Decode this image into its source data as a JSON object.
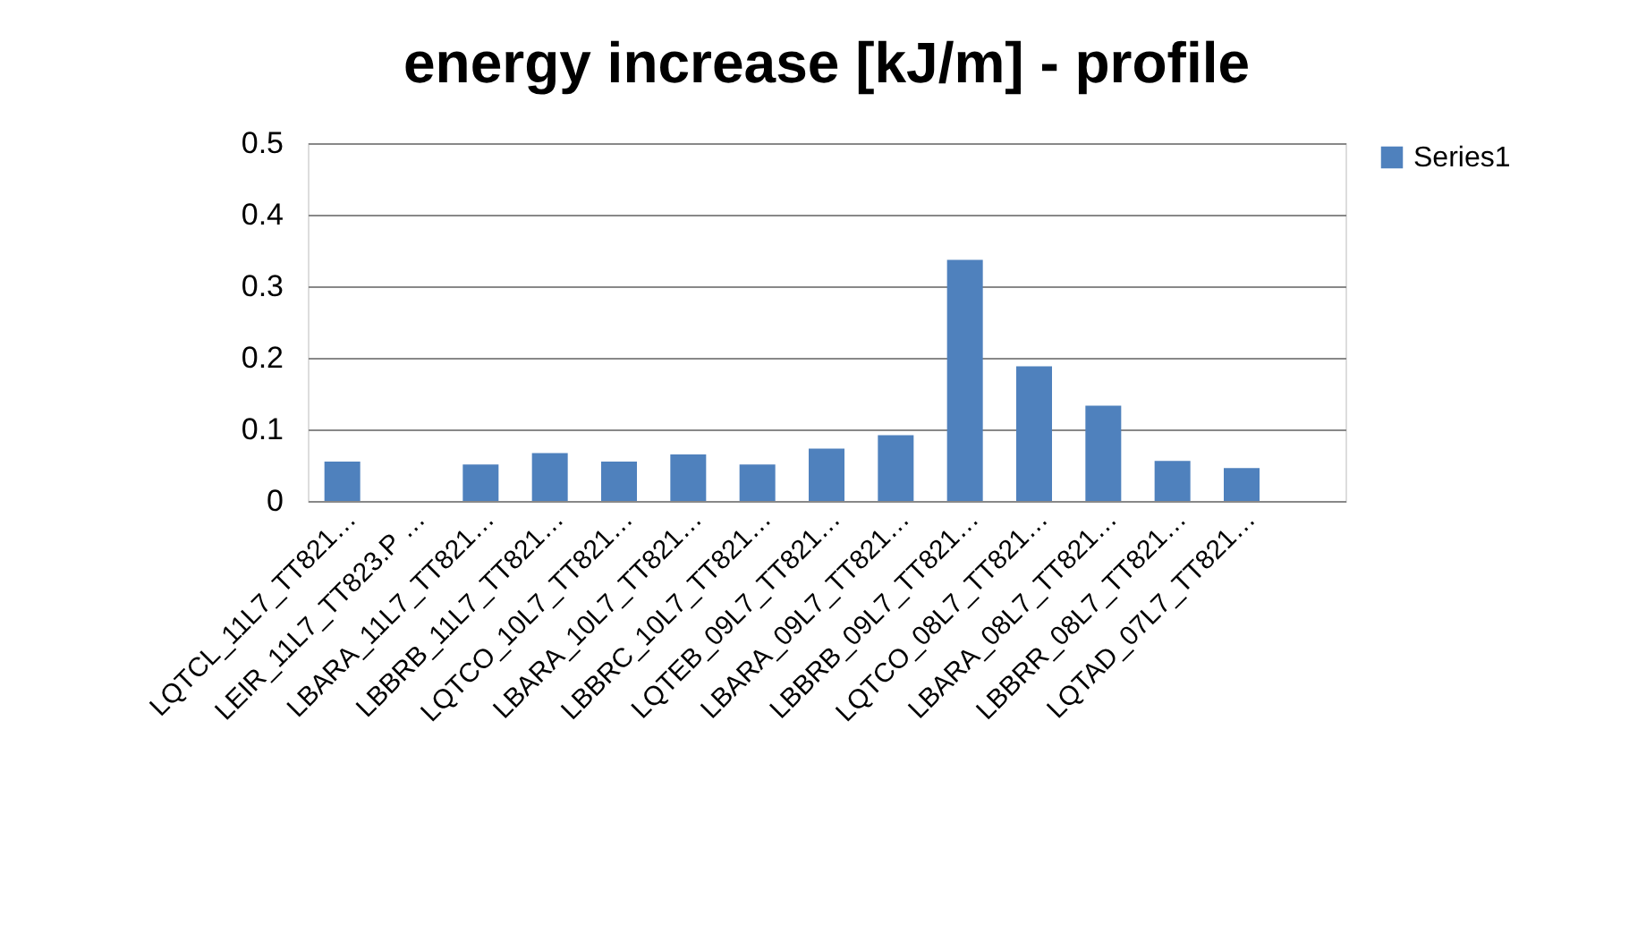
{
  "chart_data": {
    "type": "bar",
    "title": "energy increase [kJ/m] - profile",
    "categories": [
      "LQTCL_11L7_TT821…",
      "LEIR_11L7_TT823.P …",
      "LBARA_11L7_TT821…",
      "LBBRB_11L7_TT821…",
      "LQTCO_10L7_TT821…",
      "LBARA_10L7_TT821…",
      "LBBRC_10L7_TT821…",
      "LQTEB_09L7_TT821…",
      "LBARA_09L7_TT821…",
      "LBBRB_09L7_TT821…",
      "LQTCO_08L7_TT821…",
      "LBARA_08L7_TT821…",
      "LBBRR_08L7_TT821…",
      "LQTAD_07L7_TT821…",
      null
    ],
    "series": [
      {
        "name": "Series1",
        "color": "#4f81bd",
        "values": [
          0.055,
          null,
          0.051,
          0.067,
          0.055,
          0.065,
          0.051,
          0.073,
          0.092,
          0.337,
          0.188,
          0.133,
          0.056,
          0.046,
          null
        ]
      }
    ],
    "ylim": [
      0,
      0.5
    ],
    "yticks": [
      0,
      0.1,
      0.2,
      0.3,
      0.4,
      0.5
    ],
    "grid": "y",
    "legend": "right"
  }
}
